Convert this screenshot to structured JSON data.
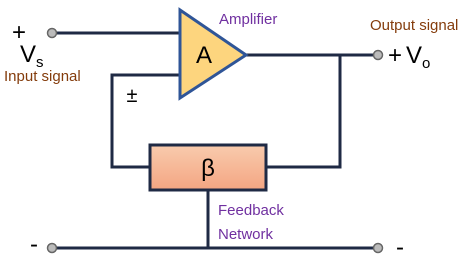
{
  "input": {
    "sign": "+",
    "symbol": "V",
    "subscript": "s",
    "label": "Input signal"
  },
  "amplifier": {
    "label": "Amplifier",
    "symbol": "A"
  },
  "output": {
    "label": "Output signal",
    "sign": "+",
    "symbol": "V",
    "subscript": "o"
  },
  "feedback": {
    "sign": "±",
    "symbol": "β",
    "label_lines": [
      "Feedback",
      "Network"
    ]
  },
  "ground": {
    "left": "-",
    "right": "-"
  }
}
